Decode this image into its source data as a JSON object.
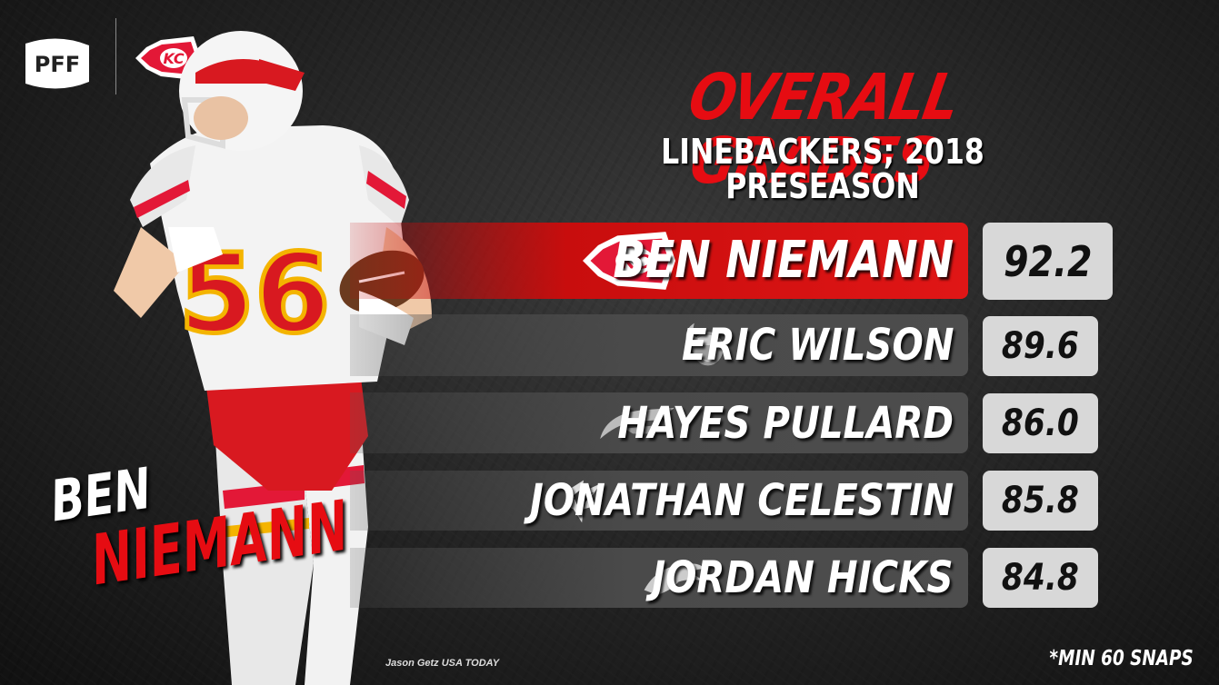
{
  "brand": {
    "logo_text": "PFF",
    "team_logo_text": "KC"
  },
  "title": "OVERALL GRADES",
  "subtitle": "LINEBACKERS; 2018 PRESEASON",
  "rows": [
    {
      "name": "BEN NIEMANN",
      "grade": "92.2",
      "team_icon": "chiefs-logo-icon",
      "highlighted": true
    },
    {
      "name": "ERIC WILSON",
      "grade": "89.6",
      "team_icon": "vikings-logo-icon",
      "highlighted": false
    },
    {
      "name": "HAYES PULLARD",
      "grade": "86.0",
      "team_icon": "chargers-logo-icon",
      "highlighted": false
    },
    {
      "name": "JONATHAN CELESTIN",
      "grade": "85.8",
      "team_icon": "falcons-logo-icon",
      "highlighted": false
    },
    {
      "name": "JORDAN HICKS",
      "grade": "84.8",
      "team_icon": "eagles-logo-icon",
      "highlighted": false
    }
  ],
  "player": {
    "first_name": "BEN",
    "last_name": "NIEMANN",
    "jersey_number": "56"
  },
  "photo_credit": "Jason Getz USA TODAY",
  "footnote": "*MIN 60 SNAPS",
  "colors": {
    "accent": "#e60c12",
    "background": "#222222",
    "bar": "#4a4a4a"
  }
}
